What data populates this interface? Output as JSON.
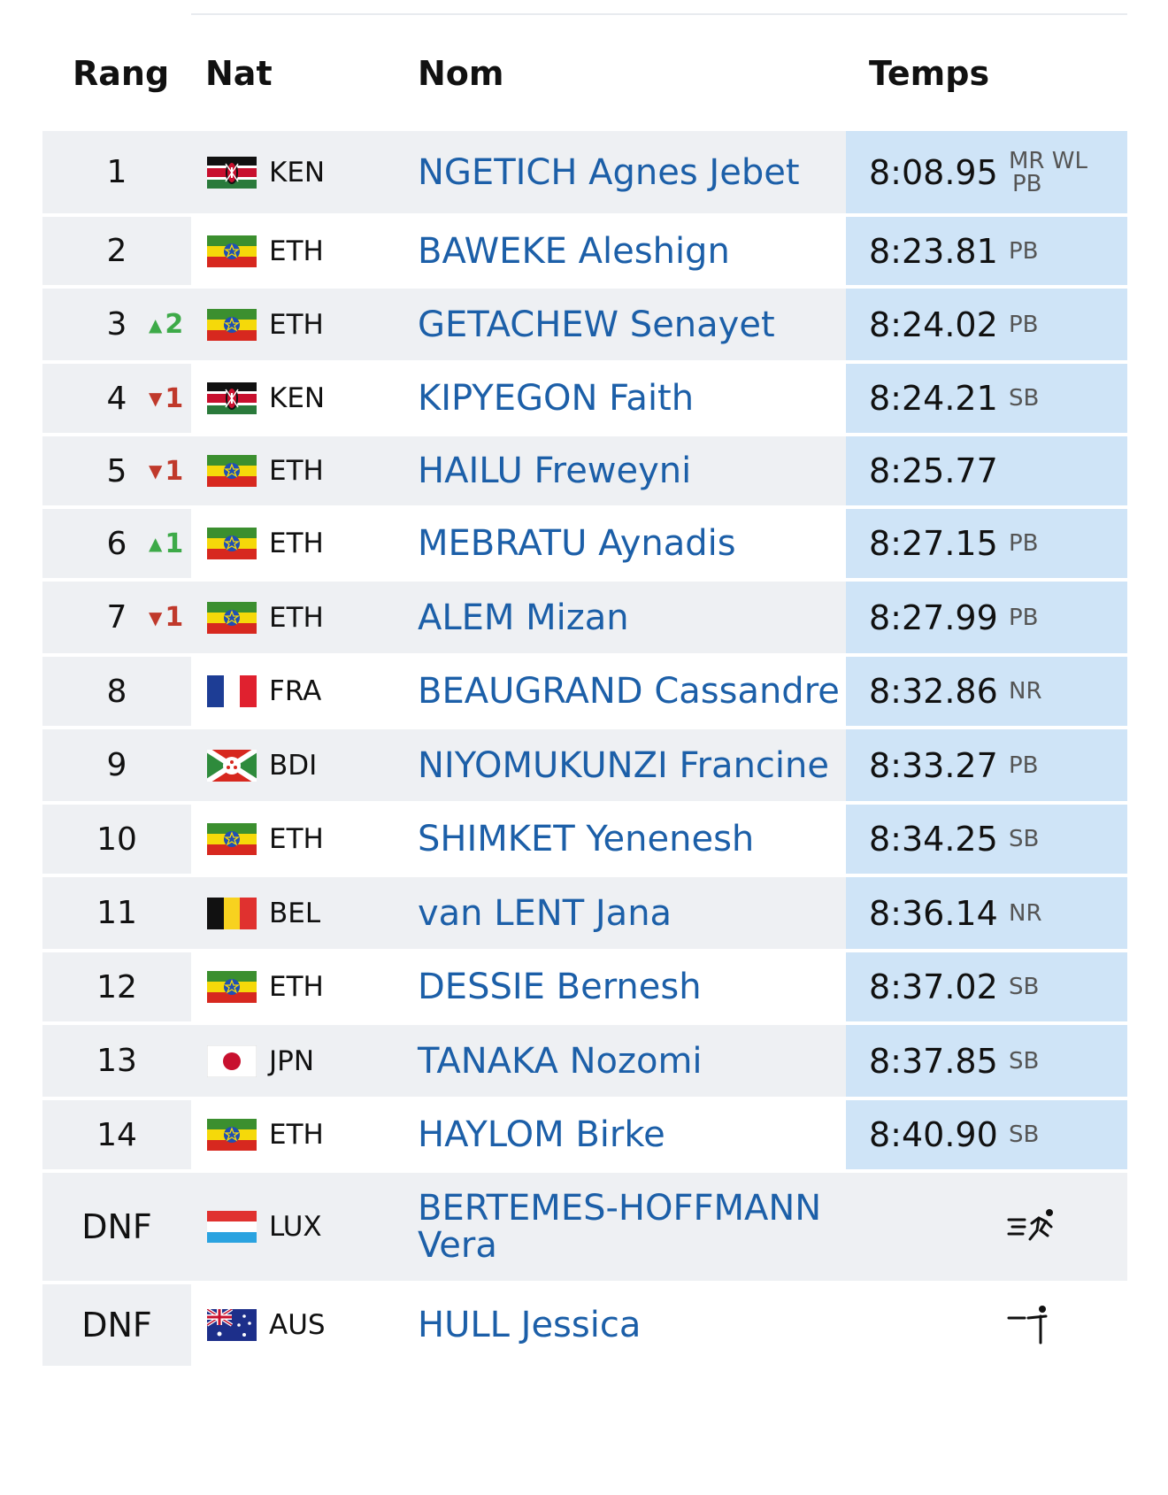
{
  "header": {
    "rang": "Rang",
    "nat": "Nat",
    "nom": "Nom",
    "temps": "Temps"
  },
  "rows": [
    {
      "rank": "1",
      "move": "",
      "move_dir": "",
      "flag": "KEN",
      "code": "KEN",
      "name": "NGETICH Agnes Jebet",
      "time": "8:08.95",
      "tag1": "MR WL",
      "tag2": "PB",
      "stack": true
    },
    {
      "rank": "2",
      "move": "",
      "move_dir": "",
      "flag": "ETH",
      "code": "ETH",
      "name": "BAWEKE Aleshign",
      "time": "8:23.81",
      "tag1": "PB",
      "tag2": ""
    },
    {
      "rank": "3",
      "move": "2",
      "move_dir": "up",
      "flag": "ETH",
      "code": "ETH",
      "name": "GETACHEW Senayet",
      "time": "8:24.02",
      "tag1": "PB",
      "tag2": ""
    },
    {
      "rank": "4",
      "move": "1",
      "move_dir": "down",
      "flag": "KEN",
      "code": "KEN",
      "name": "KIPYEGON Faith",
      "time": "8:24.21",
      "tag1": "SB",
      "tag2": ""
    },
    {
      "rank": "5",
      "move": "1",
      "move_dir": "down",
      "flag": "ETH",
      "code": "ETH",
      "name": "HAILU Freweyni",
      "time": "8:25.77",
      "tag1": "",
      "tag2": ""
    },
    {
      "rank": "6",
      "move": "1",
      "move_dir": "up",
      "flag": "ETH",
      "code": "ETH",
      "name": "MEBRATU Aynadis",
      "time": "8:27.15",
      "tag1": "PB",
      "tag2": ""
    },
    {
      "rank": "7",
      "move": "1",
      "move_dir": "down",
      "flag": "ETH",
      "code": "ETH",
      "name": "ALEM Mizan",
      "time": "8:27.99",
      "tag1": "PB",
      "tag2": ""
    },
    {
      "rank": "8",
      "move": "",
      "move_dir": "",
      "flag": "FRA",
      "code": "FRA",
      "name": "BEAUGRAND Cassandre",
      "time": "8:32.86",
      "tag1": "NR",
      "tag2": ""
    },
    {
      "rank": "9",
      "move": "",
      "move_dir": "",
      "flag": "BDI",
      "code": "BDI",
      "name": "NIYOMUKUNZI Francine",
      "time": "8:33.27",
      "tag1": "PB",
      "tag2": ""
    },
    {
      "rank": "10",
      "move": "",
      "move_dir": "",
      "flag": "ETH",
      "code": "ETH",
      "name": "SHIMKET Yenenesh",
      "time": "8:34.25",
      "tag1": "SB",
      "tag2": ""
    },
    {
      "rank": "11",
      "move": "",
      "move_dir": "",
      "flag": "BEL",
      "code": "BEL",
      "name": "van LENT Jana",
      "time": "8:36.14",
      "tag1": "NR",
      "tag2": ""
    },
    {
      "rank": "12",
      "move": "",
      "move_dir": "",
      "flag": "ETH",
      "code": "ETH",
      "name": "DESSIE Bernesh",
      "time": "8:37.02",
      "tag1": "SB",
      "tag2": ""
    },
    {
      "rank": "13",
      "move": "",
      "move_dir": "",
      "flag": "JPN",
      "code": "JPN",
      "name": "TANAKA Nozomi",
      "time": "8:37.85",
      "tag1": "SB",
      "tag2": ""
    },
    {
      "rank": "14",
      "move": "",
      "move_dir": "",
      "flag": "ETH",
      "code": "ETH",
      "name": "HAYLOM Birke",
      "time": "8:40.90",
      "tag1": "SB",
      "tag2": ""
    },
    {
      "rank": "DNF",
      "move": "",
      "move_dir": "",
      "flag": "LUX",
      "code": "LUX",
      "name": "BERTEMES-HOFFMANN Vera",
      "time": "",
      "tag1": "",
      "tag2": "",
      "dnf": true,
      "icon": "running-icon"
    },
    {
      "rank": "DNF",
      "move": "",
      "move_dir": "",
      "flag": "AUS",
      "code": "AUS",
      "name": "HULL Jessica",
      "time": "",
      "tag1": "",
      "tag2": "",
      "dnf": true,
      "icon": "walking-icon"
    }
  ],
  "colors": {
    "name": "#1c5fa8",
    "time_bg": "#cfe4f7",
    "row_alt": "#eef0f3",
    "up": "#3daa48",
    "down": "#c0392b"
  }
}
